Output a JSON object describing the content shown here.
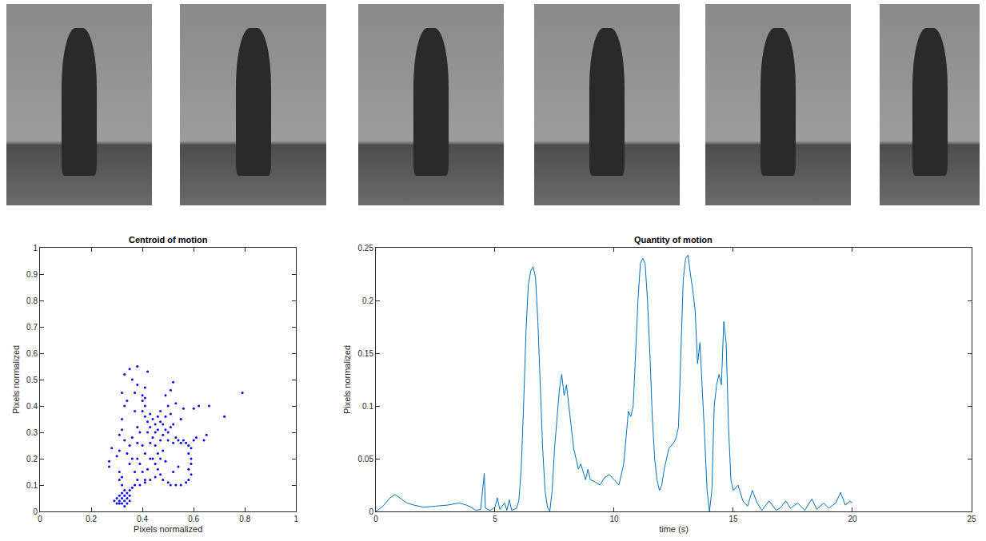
{
  "chart_data": [
    {
      "type": "scatter",
      "title": "Centroid of motion",
      "x_label": "Pixels normalized",
      "y_label": "Pixels normalized",
      "color": "#0000ff",
      "marker": "dot",
      "x": [
        0.3,
        0.31,
        0.31,
        0.32,
        0.32,
        0.33,
        0.33,
        0.34,
        0.34,
        0.35,
        0.35,
        0.3,
        0.31,
        0.32,
        0.33,
        0.34,
        0.29,
        0.33,
        0.35,
        0.36,
        0.31,
        0.31,
        0.32,
        0.32,
        0.31,
        0.31,
        0.32,
        0.32,
        0.33,
        0.32,
        0.33,
        0.35,
        0.34,
        0.33,
        0.37,
        0.37,
        0.38,
        0.38,
        0.38,
        0.37,
        0.37,
        0.36,
        0.38,
        0.38,
        0.39,
        0.39,
        0.38,
        0.4,
        0.4,
        0.41,
        0.41,
        0.4,
        0.41,
        0.42,
        0.41,
        0.4,
        0.41,
        0.4,
        0.41,
        0.42,
        0.43,
        0.44,
        0.45,
        0.45,
        0.46,
        0.47,
        0.48,
        0.46,
        0.44,
        0.43,
        0.45,
        0.47,
        0.48,
        0.49,
        0.5,
        0.51,
        0.52,
        0.5,
        0.52,
        0.53,
        0.54,
        0.55,
        0.56,
        0.57,
        0.58,
        0.46,
        0.47,
        0.45,
        0.44,
        0.48,
        0.49,
        0.43,
        0.42,
        0.47,
        0.49,
        0.51,
        0.5,
        0.49,
        0.51,
        0.52,
        0.53,
        0.55,
        0.56,
        0.58,
        0.59,
        0.59,
        0.58,
        0.59,
        0.59,
        0.6,
        0.61,
        0.6,
        0.62,
        0.39,
        0.41,
        0.43,
        0.45,
        0.47,
        0.48,
        0.5,
        0.51,
        0.53,
        0.55,
        0.57,
        0.58,
        0.52,
        0.54,
        0.46,
        0.36,
        0.35,
        0.34,
        0.35,
        0.36,
        0.42,
        0.43,
        0.79,
        0.72,
        0.65,
        0.64,
        0.27,
        0.27,
        0.28,
        0.66,
        0.3
      ],
      "values": [
        0.03,
        0.03,
        0.04,
        0.03,
        0.05,
        0.04,
        0.06,
        0.05,
        0.07,
        0.06,
        0.08,
        0.05,
        0.06,
        0.07,
        0.08,
        0.03,
        0.04,
        0.02,
        0.04,
        0.09,
        0.12,
        0.15,
        0.13,
        0.1,
        0.23,
        0.29,
        0.31,
        0.35,
        0.4,
        0.45,
        0.52,
        0.54,
        0.42,
        0.27,
        0.1,
        0.15,
        0.2,
        0.26,
        0.32,
        0.38,
        0.45,
        0.5,
        0.55,
        0.48,
        0.3,
        0.18,
        0.12,
        0.44,
        0.42,
        0.43,
        0.4,
        0.38,
        0.36,
        0.53,
        0.47,
        0.25,
        0.22,
        0.15,
        0.12,
        0.3,
        0.32,
        0.35,
        0.33,
        0.3,
        0.36,
        0.34,
        0.33,
        0.31,
        0.28,
        0.26,
        0.25,
        0.27,
        0.29,
        0.31,
        0.3,
        0.32,
        0.33,
        0.27,
        0.26,
        0.28,
        0.27,
        0.26,
        0.27,
        0.26,
        0.25,
        0.22,
        0.2,
        0.18,
        0.2,
        0.23,
        0.19,
        0.37,
        0.34,
        0.38,
        0.36,
        0.37,
        0.4,
        0.44,
        0.46,
        0.49,
        0.41,
        0.35,
        0.39,
        0.22,
        0.2,
        0.18,
        0.16,
        0.14,
        0.24,
        0.27,
        0.28,
        0.39,
        0.4,
        0.1,
        0.11,
        0.12,
        0.13,
        0.14,
        0.12,
        0.11,
        0.1,
        0.1,
        0.1,
        0.11,
        0.12,
        0.15,
        0.17,
        0.16,
        0.2,
        0.18,
        0.22,
        0.25,
        0.28,
        0.16,
        0.2,
        0.45,
        0.36,
        0.29,
        0.27,
        0.19,
        0.17,
        0.24,
        0.4,
        0.21
      ],
      "xlim": [
        0,
        1
      ],
      "xticks": [
        0,
        0.2,
        0.4,
        0.6,
        0.8,
        1
      ],
      "ylim": [
        0,
        1
      ],
      "yticks": [
        0,
        0.1,
        0.2,
        0.3,
        0.4,
        0.5,
        0.6,
        0.7,
        0.8,
        0.9,
        1
      ],
      "grid": false
    },
    {
      "type": "line",
      "title": "Quantity of motion",
      "x_label": "time (s)",
      "y_label": "Pixels normalized",
      "color": "#0072bd",
      "line_style": "solid",
      "x": [
        0,
        0.3,
        0.6,
        0.8,
        1.0,
        1.3,
        1.6,
        2.0,
        2.5,
        3.0,
        3.5,
        3.8,
        4.0,
        4.2,
        4.4,
        4.55,
        4.6,
        4.8,
        5.0,
        5.1,
        5.2,
        5.4,
        5.5,
        5.6,
        5.7,
        5.9,
        6.0,
        6.1,
        6.2,
        6.3,
        6.4,
        6.5,
        6.6,
        6.7,
        6.8,
        6.9,
        7.0,
        7.1,
        7.2,
        7.3,
        7.4,
        7.5,
        7.6,
        7.7,
        7.8,
        7.9,
        8.0,
        8.1,
        8.2,
        8.3,
        8.4,
        8.5,
        8.6,
        8.7,
        8.8,
        8.9,
        9.0,
        9.2,
        9.4,
        9.6,
        9.8,
        10.0,
        10.2,
        10.4,
        10.6,
        10.7,
        10.8,
        10.9,
        11.0,
        11.1,
        11.2,
        11.3,
        11.4,
        11.5,
        11.6,
        11.7,
        11.8,
        11.9,
        12.0,
        12.1,
        12.3,
        12.5,
        12.6,
        12.7,
        12.8,
        12.9,
        13.0,
        13.1,
        13.2,
        13.3,
        13.4,
        13.5,
        13.6,
        13.7,
        13.8,
        13.9,
        14.0,
        14.1,
        14.2,
        14.3,
        14.4,
        14.5,
        14.6,
        14.7,
        14.8,
        14.9,
        15.0,
        15.2,
        15.4,
        15.6,
        15.8,
        16.0,
        16.2,
        16.5,
        16.8,
        17.0,
        17.2,
        17.4,
        17.7,
        18.0,
        18.3,
        18.5,
        18.8,
        19.0,
        19.3,
        19.5,
        19.7,
        19.9,
        20.0
      ],
      "values": [
        0,
        0.005,
        0.013,
        0.016,
        0.013,
        0.008,
        0.006,
        0.004,
        0.005,
        0.006,
        0.008,
        0.006,
        0.004,
        0.001,
        0.002,
        0.036,
        0.003,
        0.001,
        0.004,
        0.013,
        0.002,
        0.008,
        0.001,
        0.011,
        0.001,
        0.003,
        0.01,
        0.04,
        0.1,
        0.17,
        0.215,
        0.228,
        0.232,
        0.222,
        0.18,
        0.12,
        0.06,
        0.02,
        0.004,
        0.0,
        0.02,
        0.06,
        0.09,
        0.115,
        0.13,
        0.11,
        0.12,
        0.1,
        0.075,
        0.06,
        0.05,
        0.04,
        0.045,
        0.038,
        0.03,
        0.04,
        0.03,
        0.028,
        0.025,
        0.032,
        0.035,
        0.03,
        0.025,
        0.045,
        0.095,
        0.09,
        0.1,
        0.15,
        0.2,
        0.235,
        0.24,
        0.235,
        0.2,
        0.15,
        0.09,
        0.05,
        0.03,
        0.02,
        0.025,
        0.04,
        0.06,
        0.065,
        0.07,
        0.08,
        0.15,
        0.22,
        0.24,
        0.243,
        0.225,
        0.21,
        0.19,
        0.14,
        0.16,
        0.12,
        0.07,
        0.02,
        0.0,
        0.02,
        0.1,
        0.12,
        0.13,
        0.12,
        0.18,
        0.16,
        0.08,
        0.03,
        0.02,
        0.025,
        0.01,
        0.005,
        0.02,
        0.008,
        0.001,
        0.01,
        0.001,
        0.004,
        0.01,
        0.003,
        0.008,
        0.001,
        0.012,
        0.002,
        0.008,
        0.003,
        0.008,
        0.018,
        0.006,
        0.01,
        0.008
      ],
      "xlim": [
        0,
        25
      ],
      "xticks": [
        0,
        5,
        10,
        15,
        20,
        25
      ],
      "ylim": [
        0,
        0.25
      ],
      "yticks": [
        0,
        0.05,
        0.1,
        0.15,
        0.2,
        0.25
      ],
      "grid": false
    }
  ]
}
